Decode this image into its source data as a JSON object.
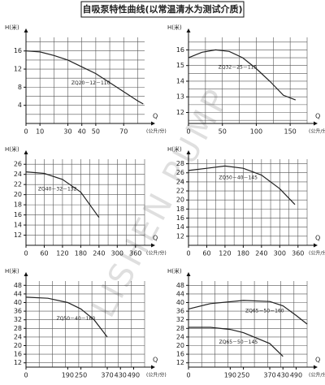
{
  "title": "自吸泵特性曲线(以常温清水为测试介质)",
  "watermark": "LISHEN PUMP",
  "chart_data": [
    {
      "type": "line",
      "y_label": "H(米)",
      "x_label": "Q",
      "x_unit": "(公升/分)",
      "xlim": [
        0,
        85
      ],
      "xticks": [
        0,
        10,
        30,
        40,
        50,
        70
      ],
      "xgrid": [
        10,
        20,
        30,
        40,
        50,
        60,
        70,
        80
      ],
      "ylim": [
        0,
        19
      ],
      "yticks": [
        4,
        8,
        12,
        16
      ],
      "ygrid": [
        2,
        4,
        6,
        8,
        10,
        12,
        14,
        16,
        18
      ],
      "series": [
        {
          "name": "ZQ20－12－110",
          "color": "#222222",
          "x": [
            0,
            10,
            20,
            30,
            40,
            50,
            60,
            70,
            80,
            84
          ],
          "values": [
            16,
            15.8,
            15,
            14,
            12.5,
            11,
            9,
            7,
            5,
            4.3
          ]
        }
      ]
    },
    {
      "type": "line",
      "y_label": "H(米)",
      "x_label": "Q",
      "x_unit": "(公升/分)",
      "xlim": [
        0,
        175
      ],
      "xticks": [
        0,
        50,
        100,
        150
      ],
      "xgrid": [
        25,
        50,
        75,
        100,
        125,
        150,
        175
      ],
      "ylim": [
        11.3,
        16.8
      ],
      "yticks": [
        12,
        13,
        14,
        15,
        16
      ],
      "ygrid": [
        11.5,
        12,
        12.5,
        13,
        13.5,
        14,
        14.5,
        15,
        15.5,
        16,
        16.5
      ],
      "series": [
        {
          "name": "ZQ32－25－115",
          "color": "#222222",
          "x": [
            0,
            20,
            40,
            60,
            80,
            100,
            120,
            140,
            158
          ],
          "values": [
            15.5,
            15.85,
            16,
            15.9,
            15.5,
            14.8,
            14,
            13.1,
            12.8
          ]
        }
      ]
    },
    {
      "type": "line",
      "y_label": "H(米)",
      "x_label": "Q",
      "x_unit": "(公升/分)",
      "xlim": [
        0,
        390
      ],
      "xticks": [
        0,
        60,
        120,
        180,
        240,
        300,
        360
      ],
      "xgrid": [
        30,
        60,
        90,
        120,
        150,
        180,
        210,
        240,
        270,
        300,
        330,
        360,
        390
      ],
      "ylim": [
        10,
        27
      ],
      "yticks": [
        12,
        14,
        16,
        18,
        20,
        22,
        24,
        26
      ],
      "ygrid": [
        12,
        14,
        16,
        18,
        20,
        22,
        24,
        26
      ],
      "series": [
        {
          "name": "ZQ40－32－132",
          "color": "#222222",
          "x": [
            0,
            60,
            120,
            180,
            240
          ],
          "values": [
            24.5,
            24.2,
            23,
            20.5,
            15.5
          ]
        }
      ]
    },
    {
      "type": "line",
      "y_label": "H(米)",
      "x_label": "Q",
      "x_unit": "(公升/分)",
      "xlim": [
        0,
        390
      ],
      "xticks": [
        0,
        60,
        120,
        180,
        240,
        300,
        360
      ],
      "xgrid": [
        30,
        60,
        90,
        120,
        150,
        180,
        210,
        240,
        270,
        300,
        330,
        360,
        390
      ],
      "ylim": [
        10,
        29
      ],
      "yticks": [
        12,
        14,
        16,
        18,
        20,
        22,
        24,
        26,
        28
      ],
      "ygrid": [
        12,
        14,
        16,
        18,
        20,
        22,
        24,
        26,
        28
      ],
      "series": [
        {
          "name": "ZQ50－40－145",
          "color": "#222222",
          "x": [
            0,
            60,
            120,
            180,
            240,
            300,
            350
          ],
          "values": [
            26.5,
            27,
            27.5,
            27,
            25.5,
            22.5,
            19
          ]
        }
      ]
    },
    {
      "type": "line",
      "y_label": "H(米)",
      "x_label": "Q",
      "x_unit": "(公升/分)",
      "xlim": [
        0,
        540
      ],
      "xticks": [
        0,
        190,
        250,
        370,
        430,
        490
      ],
      "xgrid": [
        60,
        120,
        180,
        240,
        300,
        360,
        420,
        480,
        540
      ],
      "ylim": [
        10,
        50
      ],
      "yticks": [
        12,
        16,
        20,
        24,
        28,
        32,
        36,
        40,
        44,
        48
      ],
      "ygrid": [
        12,
        16,
        20,
        24,
        28,
        32,
        36,
        40,
        44,
        48
      ],
      "series": [
        {
          "name": "ZQ50－40－160",
          "color": "#222222",
          "x": [
            0,
            100,
            190,
            250,
            310,
            370
          ],
          "values": [
            42.5,
            42,
            40,
            37,
            32,
            24
          ]
        }
      ]
    },
    {
      "type": "line",
      "y_label": "H(米)",
      "x_label": "Q",
      "x_unit": "(公升/分)",
      "xlim": [
        0,
        540
      ],
      "xticks": [
        0,
        190,
        250,
        370,
        430,
        490
      ],
      "xgrid": [
        60,
        120,
        180,
        240,
        300,
        360,
        420,
        480,
        540
      ],
      "ylim": [
        10,
        50
      ],
      "yticks": [
        12,
        16,
        20,
        24,
        28,
        32,
        36,
        40,
        44,
        48
      ],
      "ygrid": [
        12,
        16,
        20,
        24,
        28,
        32,
        36,
        40,
        44,
        48
      ],
      "series": [
        {
          "name": "ZQ65－50－160",
          "color": "#222222",
          "x": [
            0,
            100,
            250,
            370,
            430,
            490,
            540
          ],
          "values": [
            37,
            39.5,
            41,
            40.5,
            38.5,
            34,
            30
          ]
        },
        {
          "name": "ZQ65－50－145",
          "color": "#222222",
          "x": [
            0,
            100,
            190,
            250,
            370,
            430
          ],
          "values": [
            28.5,
            28.5,
            27.5,
            26,
            21,
            15
          ]
        }
      ]
    }
  ]
}
